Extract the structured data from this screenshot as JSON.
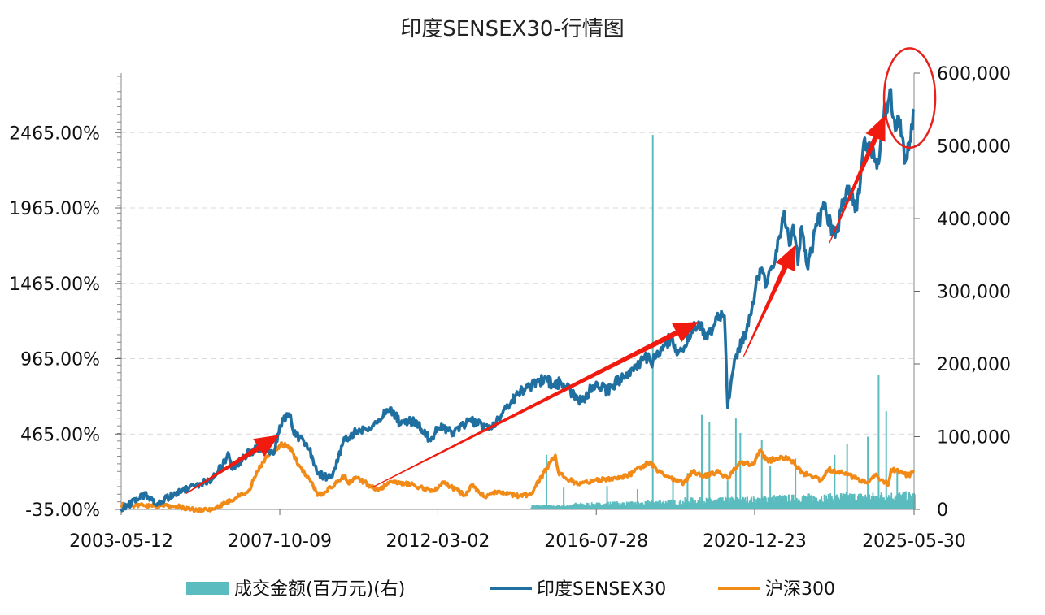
{
  "chart_data": {
    "type": "line",
    "title": "印度SENSEX30-行情图",
    "x_tick_labels": [
      "2003-05-12",
      "2007-10-09",
      "2012-03-02",
      "2016-07-28",
      "2020-12-23",
      "2025-05-30"
    ],
    "y_left": {
      "tick_labels": [
        "-35.00%",
        "465.00%",
        "965.00%",
        "1465.00%",
        "1965.00%",
        "2465.00%"
      ],
      "ticks": [
        -35,
        465,
        965,
        1465,
        1965,
        2465
      ],
      "range": [
        -35,
        2860
      ],
      "unit": "%"
    },
    "y_right": {
      "tick_labels": [
        "0",
        "100,000",
        "200,000",
        "300,000",
        "400,000",
        "500,000",
        "600,000"
      ],
      "ticks": [
        0,
        100000,
        200000,
        300000,
        400000,
        500000,
        600000
      ],
      "range": [
        0,
        600000
      ]
    },
    "grid": "horizontal dashed",
    "legend_position": "bottom",
    "series": [
      {
        "name": "成交金额(百万元)(右)",
        "kind": "bar",
        "axis": "right",
        "color": "#5bbcbf",
        "start_date": "2014-10-01",
        "baseline": [
          5000,
          7000,
          8000,
          10000,
          12000,
          13000,
          15000,
          16000,
          17000,
          18000
        ],
        "spikes": [
          {
            "date": "2015-03-10",
            "value": 75000
          },
          {
            "date": "2015-09-01",
            "value": 30000
          },
          {
            "date": "2016-11-15",
            "value": 32000
          },
          {
            "date": "2017-09-20",
            "value": 28000
          },
          {
            "date": "2018-02-22",
            "value": 515000
          },
          {
            "date": "2018-09-15",
            "value": 45000
          },
          {
            "date": "2019-02-10",
            "value": 50000
          },
          {
            "date": "2019-07-05",
            "value": 130000
          },
          {
            "date": "2019-09-20",
            "value": 120000
          },
          {
            "date": "2020-03-23",
            "value": 40000
          },
          {
            "date": "2020-06-15",
            "value": 125000
          },
          {
            "date": "2020-07-30",
            "value": 105000
          },
          {
            "date": "2021-03-05",
            "value": 95000
          },
          {
            "date": "2021-05-30",
            "value": 60000
          },
          {
            "date": "2022-02-10",
            "value": 70000
          },
          {
            "date": "2023-03-15",
            "value": 75000
          },
          {
            "date": "2023-07-20",
            "value": 90000
          },
          {
            "date": "2024-02-15",
            "value": 100000
          },
          {
            "date": "2024-06-04",
            "value": 185000
          },
          {
            "date": "2024-08-20",
            "value": 135000
          },
          {
            "date": "2024-12-10",
            "value": 55000
          }
        ]
      },
      {
        "name": "印度SENSEX30",
        "kind": "line",
        "axis": "left",
        "color": "#1f6fa0",
        "points": [
          [
            "2003-05-12",
            -35
          ],
          [
            "2004-01-10",
            65
          ],
          [
            "2004-05-17",
            5
          ],
          [
            "2004-12-01",
            80
          ],
          [
            "2005-06-01",
            115
          ],
          [
            "2005-12-01",
            170
          ],
          [
            "2006-05-10",
            330
          ],
          [
            "2006-06-14",
            230
          ],
          [
            "2006-12-01",
            345
          ],
          [
            "2007-05-01",
            380
          ],
          [
            "2007-08-15",
            340
          ],
          [
            "2007-10-09",
            520
          ],
          [
            "2008-01-08",
            600
          ],
          [
            "2008-03-20",
            450
          ],
          [
            "2008-06-01",
            430
          ],
          [
            "2008-09-01",
            320
          ],
          [
            "2008-10-27",
            200
          ],
          [
            "2009-03-09",
            175
          ],
          [
            "2009-05-18",
            280
          ],
          [
            "2009-07-15",
            420
          ],
          [
            "2009-11-01",
            480
          ],
          [
            "2010-04-01",
            510
          ],
          [
            "2010-11-05",
            640
          ],
          [
            "2011-02-10",
            540
          ],
          [
            "2011-08-01",
            550
          ],
          [
            "2011-12-20",
            420
          ],
          [
            "2012-03-02",
            510
          ],
          [
            "2012-08-01",
            480
          ],
          [
            "2013-01-20",
            560
          ],
          [
            "2013-08-28",
            500
          ],
          [
            "2013-12-01",
            580
          ],
          [
            "2014-06-01",
            740
          ],
          [
            "2015-03-04",
            840
          ],
          [
            "2015-05-15",
            780
          ],
          [
            "2015-08-01",
            810
          ],
          [
            "2016-02-25",
            680
          ],
          [
            "2016-07-28",
            810
          ],
          [
            "2016-11-15",
            750
          ],
          [
            "2017-06-01",
            870
          ],
          [
            "2017-12-31",
            980
          ],
          [
            "2018-02-06",
            930
          ],
          [
            "2018-08-28",
            1110
          ],
          [
            "2018-10-26",
            990
          ],
          [
            "2019-06-03",
            1210
          ],
          [
            "2019-08-20",
            1100
          ],
          [
            "2019-12-31",
            1250
          ],
          [
            "2020-01-20",
            1280
          ],
          [
            "2020-02-20",
            1250
          ],
          [
            "2020-03-24",
            640
          ],
          [
            "2020-06-01",
            960
          ],
          [
            "2020-10-01",
            1150
          ],
          [
            "2020-12-23",
            1390
          ],
          [
            "2021-02-15",
            1560
          ],
          [
            "2021-04-20",
            1450
          ],
          [
            "2021-07-01",
            1570
          ],
          [
            "2021-10-18",
            1945
          ],
          [
            "2021-12-20",
            1720
          ],
          [
            "2022-01-17",
            1850
          ],
          [
            "2022-03-07",
            1590
          ],
          [
            "2022-04-05",
            1820
          ],
          [
            "2022-06-17",
            1560
          ],
          [
            "2022-09-15",
            1850
          ],
          [
            "2022-12-01",
            1960
          ],
          [
            "2023-03-20",
            1770
          ],
          [
            "2023-07-20",
            2110
          ],
          [
            "2023-10-26",
            1950
          ],
          [
            "2023-12-28",
            2350
          ],
          [
            "2024-03-01",
            2400
          ],
          [
            "2024-06-04",
            2260
          ],
          [
            "2024-07-25",
            2560
          ],
          [
            "2024-09-27",
            2750
          ],
          [
            "2024-11-20",
            2480
          ],
          [
            "2025-01-10",
            2550
          ],
          [
            "2025-03-04",
            2280
          ],
          [
            "2025-04-07",
            2350
          ],
          [
            "2025-05-30",
            2620
          ]
        ]
      },
      {
        "name": "沪深300",
        "kind": "line",
        "axis": "left",
        "color": "#f28a17",
        "points": [
          [
            "2003-05-12",
            -5
          ],
          [
            "2004-01-10",
            -10
          ],
          [
            "2004-12-01",
            -15
          ],
          [
            "2005-06-01",
            -40
          ],
          [
            "2005-12-01",
            -35
          ],
          [
            "2006-06-01",
            25
          ],
          [
            "2006-12-01",
            95
          ],
          [
            "2007-02-27",
            220
          ],
          [
            "2007-06-01",
            320
          ],
          [
            "2007-10-16",
            395
          ],
          [
            "2008-01-15",
            380
          ],
          [
            "2008-04-20",
            260
          ],
          [
            "2008-08-01",
            170
          ],
          [
            "2008-11-04",
            60
          ],
          [
            "2009-01-15",
            80
          ],
          [
            "2009-08-04",
            190
          ],
          [
            "2009-09-01",
            140
          ],
          [
            "2009-11-20",
            180
          ],
          [
            "2010-07-01",
            90
          ],
          [
            "2010-11-08",
            150
          ],
          [
            "2011-06-01",
            130
          ],
          [
            "2012-01-06",
            85
          ],
          [
            "2012-05-01",
            140
          ],
          [
            "2012-12-03",
            60
          ],
          [
            "2013-02-05",
            125
          ],
          [
            "2013-06-25",
            45
          ],
          [
            "2013-09-15",
            80
          ],
          [
            "2014-06-01",
            55
          ],
          [
            "2014-10-01",
            65
          ],
          [
            "2014-12-31",
            160
          ],
          [
            "2015-04-15",
            275
          ],
          [
            "2015-06-08",
            325
          ],
          [
            "2015-07-08",
            215
          ],
          [
            "2015-08-26",
            185
          ],
          [
            "2016-01-28",
            130
          ],
          [
            "2016-07-28",
            160
          ],
          [
            "2017-06-01",
            185
          ],
          [
            "2018-01-24",
            280
          ],
          [
            "2018-04-01",
            230
          ],
          [
            "2018-10-18",
            155
          ],
          [
            "2019-01-03",
            140
          ],
          [
            "2019-04-08",
            215
          ],
          [
            "2019-08-01",
            185
          ],
          [
            "2020-01-01",
            215
          ],
          [
            "2020-03-23",
            170
          ],
          [
            "2020-07-13",
            270
          ],
          [
            "2020-12-23",
            270
          ],
          [
            "2021-02-10",
            355
          ],
          [
            "2021-05-01",
            290
          ],
          [
            "2021-12-01",
            310
          ],
          [
            "2022-04-26",
            205
          ],
          [
            "2022-10-31",
            160
          ],
          [
            "2023-01-15",
            230
          ],
          [
            "2023-06-01",
            210
          ],
          [
            "2024-02-05",
            140
          ],
          [
            "2024-05-01",
            190
          ],
          [
            "2024-09-13",
            130
          ],
          [
            "2024-10-08",
            230
          ],
          [
            "2024-12-01",
            220
          ],
          [
            "2025-04-07",
            190
          ],
          [
            "2025-05-30",
            210
          ]
        ]
      }
    ],
    "annotations": [
      {
        "type": "arrow",
        "from": [
          "2005-03-01",
          70
        ],
        "to": [
          "2007-10-05",
          460
        ],
        "color": "#f01a0f"
      },
      {
        "type": "arrow",
        "from": [
          "2010-05-01",
          110
        ],
        "to": [
          "2019-06-01",
          1210
        ],
        "color": "#f01a0f"
      },
      {
        "type": "arrow",
        "from": [
          "2020-09-01",
          980
        ],
        "to": [
          "2022-02-10",
          1720
        ],
        "color": "#f01a0f"
      },
      {
        "type": "arrow",
        "from": [
          "2023-01-20",
          1730
        ],
        "to": [
          "2024-08-10",
          2580
        ],
        "color": "#f01a0f"
      },
      {
        "type": "ellipse",
        "center": [
          "2025-04-15",
          2695
        ],
        "rx_days": 260,
        "ry_pct": 330,
        "color": "#e8221b"
      }
    ]
  }
}
